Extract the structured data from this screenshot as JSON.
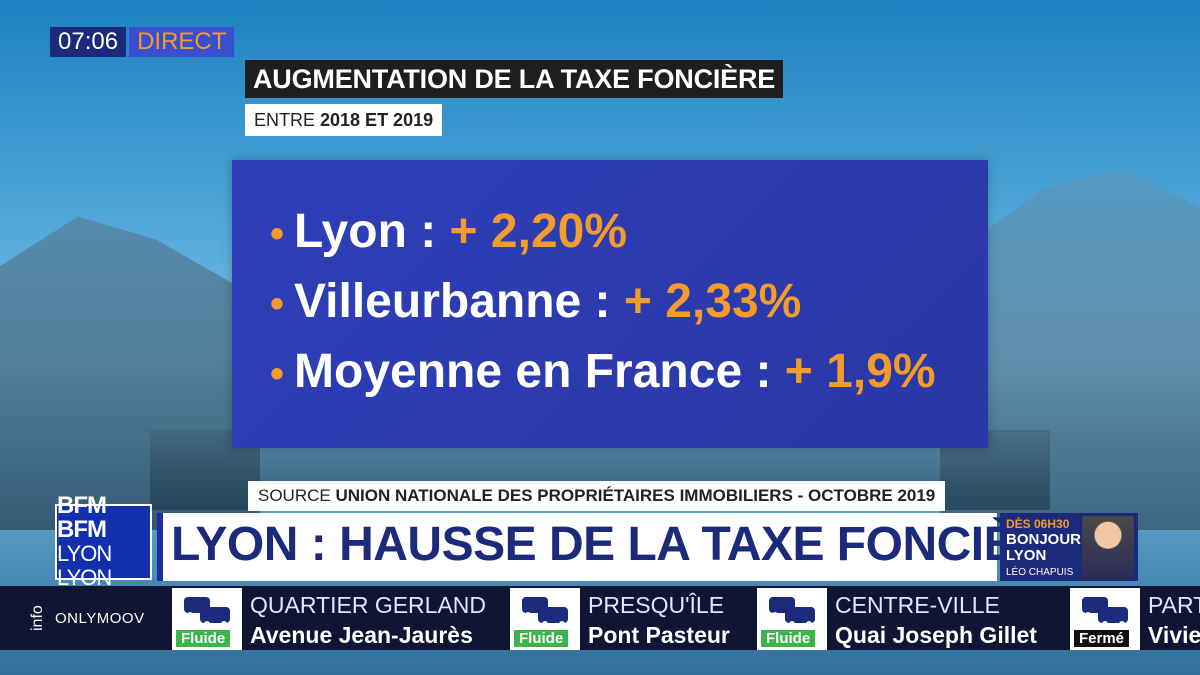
{
  "broadcast": {
    "time": "07:06",
    "live_label": "DIRECT"
  },
  "title": "AUGMENTATION DE LA TAXE FONCIÈRE",
  "subtitle": {
    "prefix": "ENTRE ",
    "period": "2018 ET 2019"
  },
  "stats": [
    {
      "label": "Lyon : ",
      "value": "+ 2,20%"
    },
    {
      "label": "Villeurbanne : ",
      "value": "+ 2,33%"
    },
    {
      "label": "Moyenne en France : ",
      "value": "+ 1,9%"
    }
  ],
  "bullet": "•",
  "source": {
    "prefix": "SOURCE ",
    "text": "UNION NATIONALE DES PROPRIÉTAIRES IMMOBILIERS - OCTOBRE 2019"
  },
  "logo": {
    "line1": "BFM BFM",
    "line2": "LYON LYON"
  },
  "headline": "LYON : HAUSSE DE LA TAXE FONCIÈRE",
  "show": {
    "time": "DÈS 06H30",
    "name": "BONJOUR LYON",
    "host": "LÉO CHAPUIS"
  },
  "info_bar": {
    "label": "info",
    "partner": "ONLYMOOV",
    "items": [
      {
        "zone": "QUARTIER GERLAND",
        "road": "Avenue Jean-Jaurès",
        "status": "Fluide"
      },
      {
        "zone": "PRESQU'ÎLE",
        "road": "Pont Pasteur",
        "status": "Fluide"
      },
      {
        "zone": "CENTRE-VILLE",
        "road": "Quai Joseph Gillet",
        "status": "Fluide"
      },
      {
        "zone": "PART",
        "road": "Vivie",
        "status": "Fermé"
      }
    ]
  },
  "colors": {
    "accent_orange": "#f39b2b",
    "panel_blue": "#2e3fb8",
    "navy": "#1b2a7a",
    "fluide_green": "#39b54a"
  }
}
